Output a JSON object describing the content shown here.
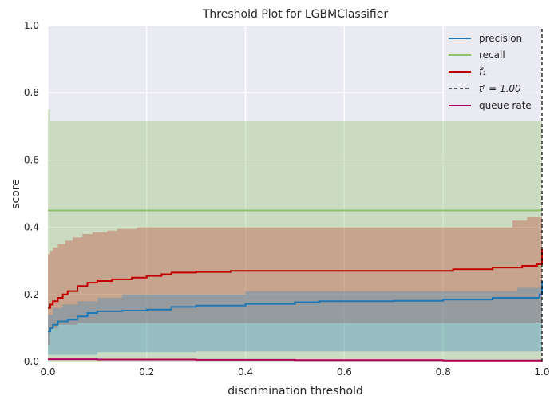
{
  "chart_data": {
    "type": "line",
    "title": "Threshold Plot for LGBMClassifier",
    "xlabel": "discrimination threshold",
    "ylabel": "score",
    "xlim": [
      0,
      1
    ],
    "ylim": [
      0,
      1
    ],
    "xticks": [
      "0.0",
      "0.2",
      "0.4",
      "0.6",
      "0.8",
      "1.0"
    ],
    "yticks": [
      "0.0",
      "0.2",
      "0.4",
      "0.6",
      "0.8",
      "1.0"
    ],
    "grid": true,
    "legend_position": "top-right",
    "background": "#eaeaf2",
    "bands": [
      {
        "series": "recall",
        "color": "#8fbf6a",
        "upper": [
          [
            0,
            0.75
          ],
          [
            0.005,
            0.75
          ],
          [
            0.005,
            0.715
          ],
          [
            1.0,
            0.715
          ]
        ],
        "lower": [
          [
            0,
            0.0
          ],
          [
            1.0,
            0.0
          ]
        ]
      },
      {
        "series": "f1",
        "color": "#c4402c",
        "upper": [
          [
            0,
            0.32
          ],
          [
            0.005,
            0.33
          ],
          [
            0.01,
            0.34
          ],
          [
            0.02,
            0.35
          ],
          [
            0.035,
            0.36
          ],
          [
            0.05,
            0.37
          ],
          [
            0.07,
            0.38
          ],
          [
            0.09,
            0.385
          ],
          [
            0.12,
            0.39
          ],
          [
            0.14,
            0.395
          ],
          [
            0.18,
            0.4
          ],
          [
            0.5,
            0.4
          ],
          [
            0.92,
            0.4
          ],
          [
            0.94,
            0.42
          ],
          [
            0.97,
            0.43
          ],
          [
            1.0,
            0.43
          ]
        ],
        "lower": [
          [
            0,
            0.05
          ],
          [
            0.005,
            0.1
          ],
          [
            0.02,
            0.11
          ],
          [
            0.06,
            0.115
          ],
          [
            0.3,
            0.115
          ],
          [
            1.0,
            0.115
          ]
        ]
      },
      {
        "series": "precision",
        "color": "#3a8bc4",
        "upper": [
          [
            0,
            0.14
          ],
          [
            0.01,
            0.16
          ],
          [
            0.03,
            0.17
          ],
          [
            0.06,
            0.18
          ],
          [
            0.1,
            0.19
          ],
          [
            0.15,
            0.2
          ],
          [
            0.25,
            0.2
          ],
          [
            0.4,
            0.21
          ],
          [
            0.6,
            0.21
          ],
          [
            0.8,
            0.21
          ],
          [
            0.95,
            0.22
          ],
          [
            1.0,
            0.23
          ]
        ],
        "lower": [
          [
            0,
            0.02
          ],
          [
            0.005,
            0.02
          ],
          [
            0.1,
            0.028
          ],
          [
            0.3,
            0.03
          ],
          [
            0.5,
            0.03
          ],
          [
            0.8,
            0.03
          ],
          [
            1.0,
            0.03
          ]
        ]
      }
    ],
    "series": [
      {
        "name": "precision",
        "color": "#1f77b4",
        "points": [
          [
            0,
            0.09
          ],
          [
            0.005,
            0.1
          ],
          [
            0.01,
            0.11
          ],
          [
            0.02,
            0.12
          ],
          [
            0.04,
            0.125
          ],
          [
            0.06,
            0.135
          ],
          [
            0.08,
            0.145
          ],
          [
            0.1,
            0.15
          ],
          [
            0.15,
            0.152
          ],
          [
            0.2,
            0.155
          ],
          [
            0.25,
            0.163
          ],
          [
            0.3,
            0.167
          ],
          [
            0.4,
            0.172
          ],
          [
            0.5,
            0.177
          ],
          [
            0.55,
            0.18
          ],
          [
            0.7,
            0.181
          ],
          [
            0.8,
            0.185
          ],
          [
            0.9,
            0.19
          ],
          [
            0.98,
            0.19
          ],
          [
            0.995,
            0.2
          ],
          [
            1.0,
            0.24
          ]
        ]
      },
      {
        "name": "recall",
        "color": "#8fbf6a",
        "points": [
          [
            0,
            0.45
          ],
          [
            1.0,
            0.45
          ]
        ]
      },
      {
        "name": "f1",
        "color": "#c00000",
        "points": [
          [
            0,
            0.16
          ],
          [
            0.005,
            0.17
          ],
          [
            0.01,
            0.18
          ],
          [
            0.02,
            0.19
          ],
          [
            0.03,
            0.2
          ],
          [
            0.04,
            0.21
          ],
          [
            0.06,
            0.225
          ],
          [
            0.08,
            0.235
          ],
          [
            0.1,
            0.24
          ],
          [
            0.13,
            0.245
          ],
          [
            0.17,
            0.25
          ],
          [
            0.2,
            0.255
          ],
          [
            0.23,
            0.26
          ],
          [
            0.25,
            0.265
          ],
          [
            0.3,
            0.267
          ],
          [
            0.37,
            0.27
          ],
          [
            0.6,
            0.27
          ],
          [
            0.8,
            0.27
          ],
          [
            0.82,
            0.275
          ],
          [
            0.9,
            0.28
          ],
          [
            0.96,
            0.285
          ],
          [
            0.99,
            0.29
          ],
          [
            1.0,
            0.335
          ]
        ]
      },
      {
        "name": "queue rate",
        "color": "#b0005a",
        "points": [
          [
            0,
            0.007
          ],
          [
            0.1,
            0.006
          ],
          [
            0.3,
            0.005
          ],
          [
            0.5,
            0.004
          ],
          [
            0.8,
            0.003
          ],
          [
            1.0,
            0.003
          ]
        ]
      },
      {
        "name": "t_f = 1.00",
        "color": "#000000",
        "dashed": true,
        "points": [
          [
            1.0,
            0
          ],
          [
            1.0,
            1.0
          ]
        ]
      }
    ],
    "legend": [
      {
        "label": "precision",
        "color": "#1f77b4",
        "dashed": false,
        "italic": false
      },
      {
        "label": "recall",
        "color": "#8fbf6a",
        "dashed": false,
        "italic": false
      },
      {
        "label": "f₁",
        "color": "#c00000",
        "dashed": false,
        "italic": true
      },
      {
        "label": "tᶠ = 1.00",
        "color": "#000000",
        "dashed": true,
        "italic": true
      },
      {
        "label": "queue rate",
        "color": "#b0005a",
        "dashed": false,
        "italic": false
      }
    ]
  }
}
